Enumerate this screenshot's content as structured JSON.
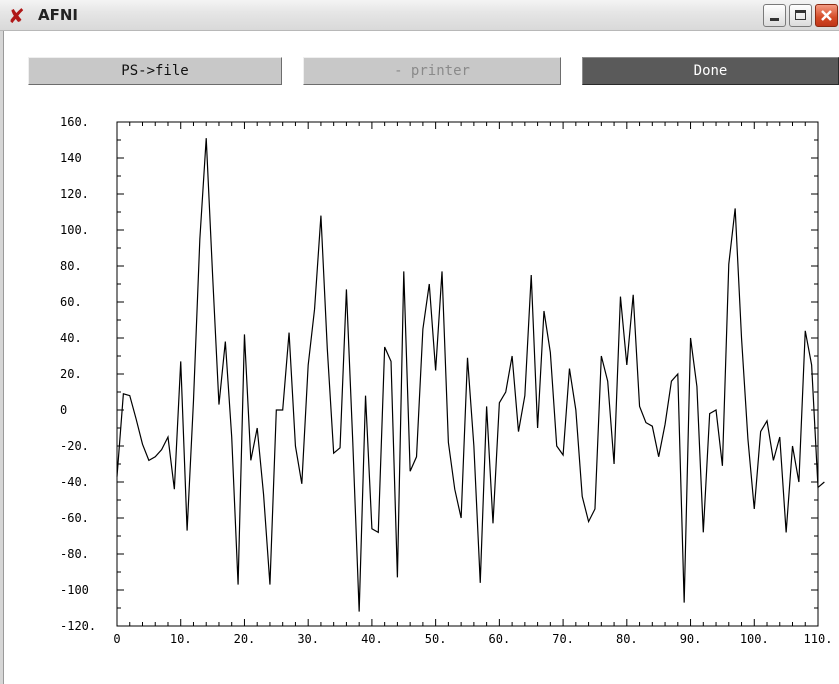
{
  "window": {
    "title": "AFNI",
    "app_icon": "afni-x-icon"
  },
  "window_controls": [
    "minimize-icon",
    "maximize-icon",
    "close-icon"
  ],
  "toolbar": {
    "psfile_label": "PS->file",
    "printer_label": "- printer",
    "done_label": "Done"
  },
  "chart_data": {
    "type": "line",
    "title": "",
    "xlabel": "",
    "ylabel": "",
    "xlim": [
      0,
      110
    ],
    "ylim": [
      -120,
      160
    ],
    "x_tick_labels": [
      "0",
      "10.",
      "20.",
      "30.",
      "40.",
      "50.",
      "60.",
      "70.",
      "80.",
      "90.",
      "100.",
      "110."
    ],
    "y_tick_labels": [
      "160.",
      "140",
      "120.",
      "100.",
      "80.",
      "60.",
      "40.",
      "20.",
      "0",
      "-20.",
      "-40.",
      "-60.",
      "-80.",
      "-100",
      "-120."
    ],
    "series": [
      {
        "values": [
          -37,
          9,
          8,
          -5,
          -19,
          -28,
          -26,
          -22,
          -15,
          -44,
          27,
          -67,
          5,
          95,
          151,
          75,
          3,
          38,
          -15,
          -97,
          42,
          -28,
          -10,
          -47,
          -97,
          0,
          0,
          43,
          -20,
          -41,
          25,
          56,
          108,
          34,
          -24,
          -21,
          67,
          -18,
          -112,
          8,
          -66,
          -68,
          35,
          27,
          -93,
          77,
          -34,
          -26,
          45,
          70,
          22,
          77,
          -18,
          -44,
          -60,
          29,
          -20,
          -96,
          2,
          -63,
          4,
          10,
          30,
          -12,
          8,
          75,
          -10,
          55,
          32,
          -20,
          -25,
          23,
          0,
          -48,
          -62,
          -55,
          30,
          16,
          -30,
          63,
          25,
          64,
          2,
          -7,
          -9,
          -26,
          -8,
          16,
          20,
          -107,
          40,
          13,
          -68,
          -2,
          0,
          -31,
          81,
          112,
          40,
          -16,
          -55,
          -12,
          -6,
          -28,
          -15,
          -68,
          -20,
          -40,
          44,
          25,
          -43,
          -40
        ]
      }
    ]
  }
}
